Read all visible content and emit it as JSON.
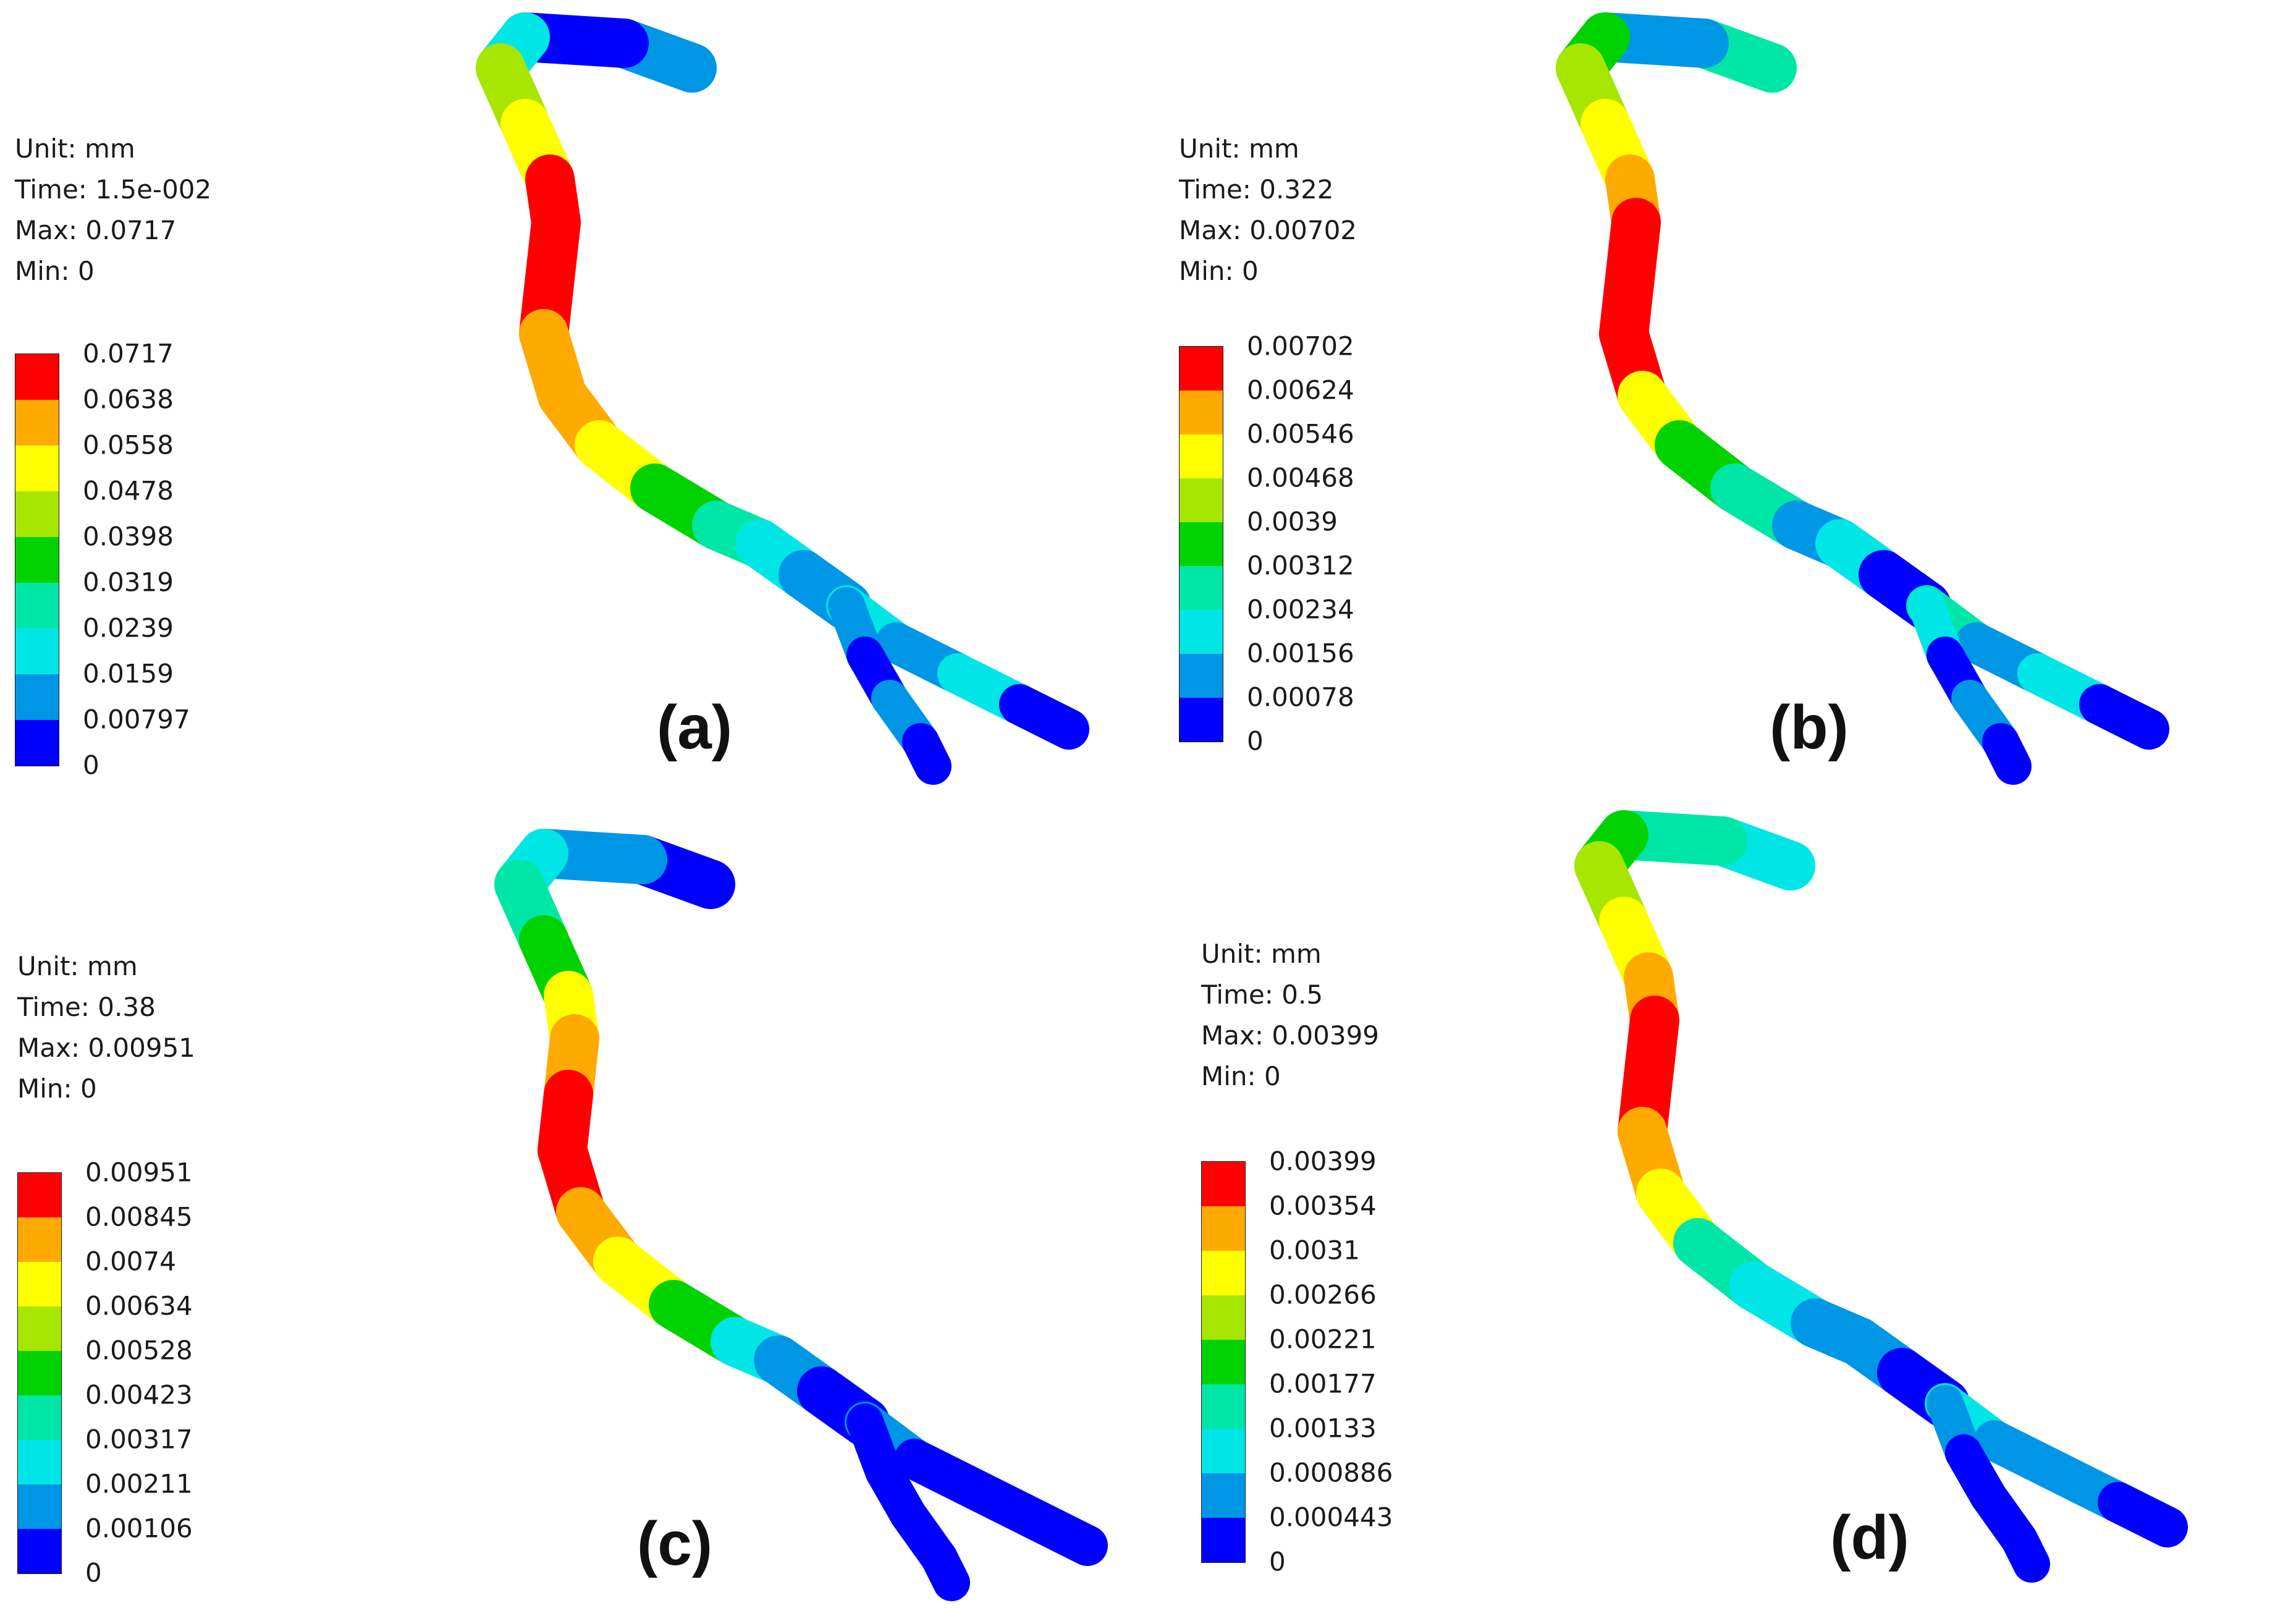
{
  "colormap": [
    "#0000ff",
    "#0096e6",
    "#00e6e6",
    "#00e6a6",
    "#00d200",
    "#a6e600",
    "#ffff00",
    "#ffaa00",
    "#ff0000"
  ],
  "panels": [
    {
      "label": "(a)",
      "info": {
        "unit": "Unit: mm",
        "time": "Time: 1.5e-002",
        "max": "Max: 0.0717",
        "min": "Min: 0"
      },
      "ticks": [
        "0.0717",
        "0.0638",
        "0.0558",
        "0.0478",
        "0.0398",
        "0.0319",
        "0.0239",
        "0.0159",
        "0.00797",
        "0"
      ],
      "segment_bins": [
        1,
        0,
        2,
        5,
        6,
        8,
        8,
        8,
        7,
        7,
        6,
        4,
        3,
        2,
        1,
        2,
        0
      ]
    },
    {
      "label": "(b)",
      "info": {
        "unit": "Unit: mm",
        "time": "Time: 0.322",
        "max": "Max: 0.00702",
        "min": "Min: 0"
      },
      "ticks": [
        "0.00702",
        "0.00624",
        "0.00546",
        "0.00468",
        "0.0039",
        "0.00312",
        "0.00234",
        "0.00156",
        "0.00078",
        "0"
      ],
      "segment_bins": [
        3,
        1,
        4,
        5,
        6,
        7,
        8,
        8,
        8,
        6,
        4,
        3,
        1,
        2,
        0
      ]
    },
    {
      "label": "(c)",
      "info": {
        "unit": "Unit: mm",
        "time": "Time: 0.38",
        "max": "Max: 0.00951",
        "min": "Min: 0"
      },
      "ticks": [
        "0.00951",
        "0.00845",
        "0.0074",
        "0.00634",
        "0.00528",
        "0.00423",
        "0.00317",
        "0.00211",
        "0.00106",
        "0"
      ],
      "segment_bins": [
        0,
        1,
        2,
        3,
        4,
        6,
        7,
        8,
        8,
        7,
        6,
        4,
        2,
        1,
        0,
        0,
        0
      ]
    },
    {
      "label": "(d)",
      "info": {
        "unit": "Unit: mm",
        "time": "Time: 0.5",
        "max": "Max: 0.00399",
        "min": "Min: 0"
      },
      "ticks": [
        "0.00399",
        "0.00354",
        "0.0031",
        "0.00266",
        "0.00221",
        "0.00177",
        "0.00133",
        "0.000886",
        "0.000443",
        "0"
      ],
      "segment_bins": [
        2,
        3,
        4,
        5,
        6,
        7,
        8,
        8,
        7,
        6,
        3,
        2,
        1,
        1,
        0
      ]
    }
  ]
}
